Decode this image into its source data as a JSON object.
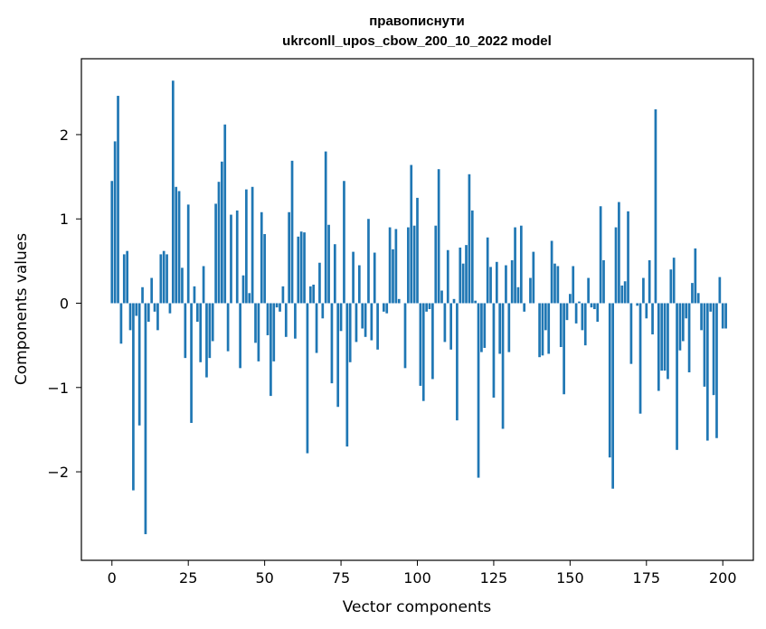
{
  "chart_data": {
    "type": "bar",
    "title": "правописнути",
    "subtitle": "ukrconll_upos_cbow_200_10_2022 model",
    "xlabel": "Vector components",
    "ylabel": "Components values",
    "xlim": [
      -10,
      210
    ],
    "ylim": [
      -3.05,
      2.9
    ],
    "xticks": [
      0,
      25,
      50,
      75,
      100,
      125,
      150,
      175,
      200
    ],
    "yticks": [
      -2,
      -1,
      0,
      1,
      2
    ],
    "ytick_labels": [
      "−2",
      "−1",
      "0",
      "1",
      "2"
    ],
    "color": "#1f77b4",
    "values": [
      1.45,
      1.92,
      2.46,
      -0.48,
      0.58,
      0.62,
      -0.32,
      -2.22,
      -0.15,
      -1.45,
      0.19,
      -2.74,
      -0.22,
      0.3,
      -0.1,
      -0.32,
      0.58,
      0.62,
      0.58,
      -0.12,
      2.64,
      1.38,
      1.33,
      0.42,
      -0.65,
      1.17,
      -1.42,
      0.2,
      -0.22,
      -0.7,
      0.44,
      -0.88,
      -0.65,
      -0.45,
      1.18,
      1.44,
      1.68,
      2.12,
      -0.57,
      1.05,
      0.0,
      1.1,
      -0.77,
      0.33,
      1.35,
      0.12,
      1.38,
      -0.47,
      -0.69,
      1.08,
      0.82,
      -0.38,
      -1.1,
      -0.69,
      -0.05,
      -0.1,
      0.2,
      -0.4,
      1.08,
      1.69,
      -0.42,
      0.79,
      0.85,
      0.84,
      -1.78,
      0.2,
      0.22,
      -0.59,
      0.48,
      -0.18,
      1.8,
      0.93,
      -0.95,
      0.7,
      -1.23,
      -0.33,
      1.45,
      -1.7,
      -0.7,
      0.61,
      -0.46,
      0.45,
      -0.3,
      -0.4,
      1.0,
      -0.44,
      0.6,
      -0.55,
      0.0,
      -0.1,
      -0.12,
      0.9,
      0.64,
      0.88,
      0.05,
      0.0,
      -0.77,
      0.9,
      1.64,
      0.92,
      1.25,
      -0.98,
      -1.16,
      -0.1,
      -0.07,
      -0.9,
      0.92,
      1.59,
      0.15,
      -0.46,
      0.63,
      -0.55,
      0.05,
      -1.39,
      0.66,
      0.47,
      0.69,
      1.53,
      1.1,
      0.03,
      -2.07,
      -0.58,
      -0.53,
      0.78,
      0.43,
      -1.12,
      0.49,
      -0.6,
      -1.49,
      0.45,
      -0.58,
      0.51,
      0.9,
      0.19,
      0.92,
      -0.1,
      0.0,
      0.3,
      0.61,
      0.0,
      -0.64,
      -0.62,
      -0.32,
      -0.6,
      0.74,
      0.47,
      0.44,
      -0.52,
      -1.08,
      -0.2,
      0.11,
      0.44,
      -0.24,
      0.02,
      -0.32,
      -0.5,
      0.3,
      -0.05,
      -0.07,
      -0.22,
      1.15,
      0.51,
      0.0,
      -1.83,
      -2.2,
      0.9,
      1.2,
      0.21,
      0.26,
      1.09,
      -0.72,
      0.0,
      -0.03,
      -1.31,
      0.3,
      -0.18,
      0.51,
      -0.37,
      2.3,
      -1.04,
      -0.8,
      -0.8,
      -0.9,
      0.4,
      0.54,
      -1.74,
      -0.56,
      -0.45,
      -0.18,
      -0.82,
      0.24,
      0.65,
      0.12,
      -0.32,
      -0.99,
      -1.63,
      -0.1,
      -1.09,
      -1.6,
      0.31,
      -0.3,
      -0.3
    ]
  }
}
